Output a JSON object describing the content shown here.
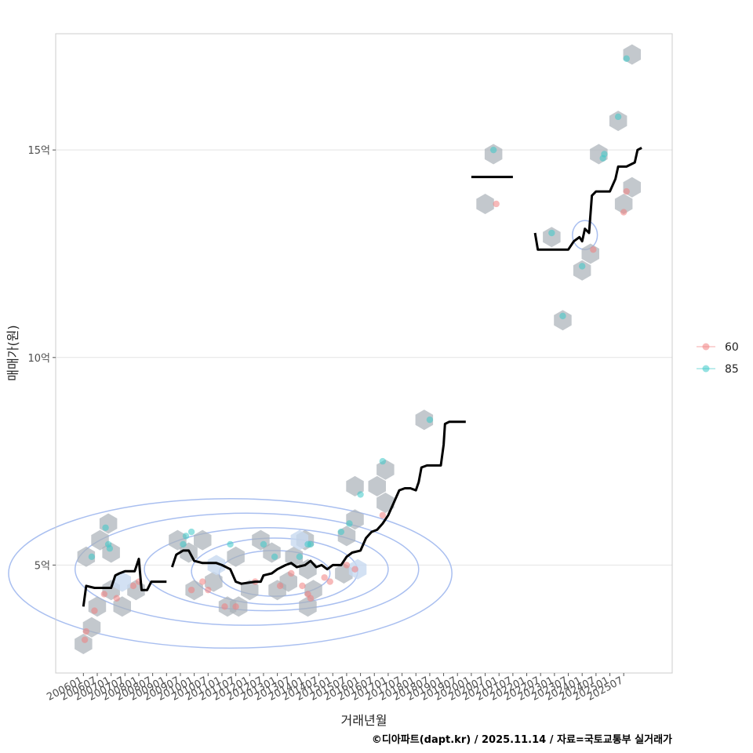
{
  "chart_data": {
    "type": "scatter",
    "xlabel": "거래년월",
    "ylabel": "매매가(원)",
    "caption": "©디아파트(dapt.kr) / 2025.11.14 / 자료=국토교통부 실거래가",
    "xlim": [
      2005.0,
      2027.25
    ],
    "ylim": [
      2.4,
      17.8
    ],
    "x_ticks": [
      "200601",
      "200607",
      "200701",
      "200707",
      "200801",
      "200807",
      "200901",
      "200907",
      "201001",
      "201007",
      "201101",
      "201107",
      "201201",
      "201207",
      "201301",
      "201307",
      "201401",
      "201407",
      "201501",
      "201507",
      "201601",
      "201607",
      "201701",
      "201707",
      "201801",
      "201807",
      "201901",
      "201907",
      "202001",
      "202007",
      "202101",
      "202107",
      "202201",
      "202207",
      "202301",
      "202307",
      "202401",
      "202407",
      "202501",
      "202507"
    ],
    "y_ticks": [
      {
        "value": 5,
        "label": "5억"
      },
      {
        "value": 10,
        "label": "10억"
      },
      {
        "value": 15,
        "label": "15억"
      }
    ],
    "colors": {
      "60": "#f08080",
      "85": "#3cc8c8",
      "hex": "#aab0b8",
      "hex_light": "#c8daf0",
      "contour": "#a9bff0",
      "line": "#000000",
      "grid": "#e3e3e3",
      "panel_border": "#cccccc"
    },
    "legend": [
      {
        "name": "60",
        "color": "#f08080"
      },
      {
        "name": "85",
        "color": "#3cc8c8"
      }
    ],
    "series": [
      {
        "name": "60",
        "points": [
          [
            2006.05,
            3.2
          ],
          [
            2006.1,
            3.4
          ],
          [
            2006.4,
            3.9
          ],
          [
            2006.75,
            4.3
          ],
          [
            2007.2,
            4.2
          ],
          [
            2007.8,
            4.5
          ],
          [
            2008.0,
            4.6
          ],
          [
            2009.9,
            4.4
          ],
          [
            2010.3,
            4.6
          ],
          [
            2010.5,
            4.4
          ],
          [
            2011.1,
            4.0
          ],
          [
            2011.5,
            4.0
          ],
          [
            2012.2,
            4.6
          ],
          [
            2013.1,
            4.5
          ],
          [
            2013.5,
            4.8
          ],
          [
            2013.9,
            4.5
          ],
          [
            2014.1,
            4.3
          ],
          [
            2014.2,
            4.2
          ],
          [
            2014.7,
            4.7
          ],
          [
            2014.9,
            4.6
          ],
          [
            2015.5,
            5.0
          ],
          [
            2015.8,
            4.9
          ],
          [
            2016.8,
            6.2
          ],
          [
            2020.9,
            13.7
          ],
          [
            2024.4,
            12.6
          ],
          [
            2025.5,
            13.5
          ],
          [
            2025.6,
            14.0
          ]
        ]
      },
      {
        "name": "85",
        "points": [
          [
            2006.3,
            5.2
          ],
          [
            2006.8,
            5.9
          ],
          [
            2006.9,
            5.5
          ],
          [
            2006.95,
            5.4
          ],
          [
            2009.6,
            5.5
          ],
          [
            2009.7,
            5.7
          ],
          [
            2009.9,
            5.8
          ],
          [
            2011.3,
            5.5
          ],
          [
            2012.5,
            5.5
          ],
          [
            2012.9,
            5.2
          ],
          [
            2013.8,
            5.2
          ],
          [
            2014.1,
            5.5
          ],
          [
            2014.2,
            5.5
          ],
          [
            2015.3,
            5.8
          ],
          [
            2015.6,
            6.0
          ],
          [
            2016.0,
            6.7
          ],
          [
            2016.8,
            7.5
          ],
          [
            2018.5,
            8.5
          ],
          [
            2020.8,
            15.0
          ],
          [
            2022.9,
            13.0
          ],
          [
            2023.3,
            11.0
          ],
          [
            2024.0,
            12.2
          ],
          [
            2024.75,
            14.8
          ],
          [
            2024.8,
            14.9
          ],
          [
            2025.3,
            15.8
          ],
          [
            2025.6,
            17.2
          ]
        ]
      }
    ],
    "hexbins": [
      [
        2006.0,
        3.1
      ],
      [
        2006.3,
        3.5
      ],
      [
        2006.5,
        4.0
      ],
      [
        2006.1,
        5.2
      ],
      [
        2006.6,
        5.6
      ],
      [
        2006.9,
        6.0
      ],
      [
        2007.0,
        5.3
      ],
      [
        2007.0,
        4.4
      ],
      [
        2007.4,
        4.0
      ],
      [
        2007.9,
        4.4
      ],
      [
        2009.4,
        5.6
      ],
      [
        2009.8,
        5.3
      ],
      [
        2010.0,
        4.4
      ],
      [
        2010.3,
        5.6
      ],
      [
        2010.7,
        4.6
      ],
      [
        2011.2,
        4.0
      ],
      [
        2011.5,
        5.2
      ],
      [
        2011.6,
        4.0
      ],
      [
        2012.0,
        4.4
      ],
      [
        2012.4,
        5.6
      ],
      [
        2012.8,
        5.3
      ],
      [
        2013.0,
        4.4
      ],
      [
        2013.4,
        4.6
      ],
      [
        2013.6,
        5.2
      ],
      [
        2014.0,
        5.6
      ],
      [
        2014.1,
        4.9
      ],
      [
        2014.3,
        4.4
      ],
      [
        2014.1,
        4.0
      ],
      [
        2015.4,
        4.8
      ],
      [
        2015.5,
        5.7
      ],
      [
        2015.8,
        6.1
      ],
      [
        2015.8,
        6.9
      ],
      [
        2016.6,
        6.9
      ],
      [
        2016.9,
        7.3
      ],
      [
        2016.9,
        6.5
      ],
      [
        2018.3,
        8.5
      ],
      [
        2020.5,
        13.7
      ],
      [
        2020.8,
        14.9
      ],
      [
        2022.9,
        12.9
      ],
      [
        2023.3,
        10.9
      ],
      [
        2024.0,
        12.1
      ],
      [
        2024.3,
        12.5
      ],
      [
        2024.6,
        14.9
      ],
      [
        2025.3,
        15.7
      ],
      [
        2025.5,
        13.7
      ],
      [
        2025.8,
        14.1
      ],
      [
        2025.8,
        17.3
      ]
    ],
    "hexbins_light": [
      [
        2007.4,
        4.6
      ],
      [
        2010.8,
        5.0
      ],
      [
        2013.8,
        5.6
      ],
      [
        2015.9,
        4.9
      ]
    ],
    "median_lines": [
      [
        [
          2006.0,
          4.0
        ],
        [
          2006.1,
          4.5
        ],
        [
          2006.4,
          4.45
        ],
        [
          2007.0,
          4.45
        ],
        [
          2007.15,
          4.75
        ],
        [
          2007.3,
          4.8
        ],
        [
          2007.5,
          4.85
        ],
        [
          2007.85,
          4.85
        ],
        [
          2008.0,
          5.15
        ],
        [
          2008.1,
          4.4
        ],
        [
          2008.3,
          4.4
        ],
        [
          2008.45,
          4.6
        ],
        [
          2009.0,
          4.6
        ]
      ],
      [
        [
          2009.2,
          4.95
        ],
        [
          2009.35,
          5.25
        ],
        [
          2009.6,
          5.35
        ],
        [
          2009.8,
          5.35
        ],
        [
          2010.0,
          5.1
        ],
        [
          2010.3,
          5.05
        ],
        [
          2010.8,
          5.05
        ],
        [
          2011.0,
          5.0
        ],
        [
          2011.3,
          4.9
        ],
        [
          2011.5,
          4.6
        ],
        [
          2011.7,
          4.55
        ],
        [
          2012.2,
          4.6
        ],
        [
          2012.4,
          4.6
        ],
        [
          2012.5,
          4.75
        ],
        [
          2012.8,
          4.8
        ],
        [
          2013.0,
          4.9
        ],
        [
          2013.3,
          5.0
        ],
        [
          2013.5,
          5.05
        ],
        [
          2013.7,
          4.95
        ],
        [
          2014.0,
          5.0
        ],
        [
          2014.2,
          5.1
        ],
        [
          2014.4,
          4.95
        ],
        [
          2014.6,
          5.0
        ],
        [
          2014.8,
          4.9
        ],
        [
          2015.0,
          5.0
        ],
        [
          2015.3,
          5.0
        ],
        [
          2015.5,
          5.2
        ],
        [
          2015.7,
          5.3
        ],
        [
          2016.0,
          5.35
        ],
        [
          2016.2,
          5.65
        ],
        [
          2016.4,
          5.8
        ],
        [
          2016.6,
          5.85
        ],
        [
          2016.8,
          6.0
        ],
        [
          2017.0,
          6.2
        ],
        [
          2017.2,
          6.5
        ],
        [
          2017.4,
          6.8
        ],
        [
          2017.6,
          6.85
        ],
        [
          2017.8,
          6.85
        ],
        [
          2018.0,
          6.8
        ],
        [
          2018.1,
          7.0
        ],
        [
          2018.2,
          7.35
        ],
        [
          2018.4,
          7.4
        ],
        [
          2018.9,
          7.4
        ],
        [
          2019.0,
          7.9
        ],
        [
          2019.05,
          8.4
        ],
        [
          2019.2,
          8.45
        ],
        [
          2019.8,
          8.45
        ]
      ],
      [
        [
          2020.0,
          14.35
        ],
        [
          2021.5,
          14.35
        ]
      ],
      [
        [
          2022.3,
          13.0
        ],
        [
          2022.4,
          12.6
        ],
        [
          2023.0,
          12.6
        ],
        [
          2023.5,
          12.6
        ],
        [
          2023.7,
          12.8
        ],
        [
          2023.9,
          12.9
        ],
        [
          2024.0,
          12.8
        ],
        [
          2024.1,
          13.1
        ],
        [
          2024.25,
          13.0
        ],
        [
          2024.35,
          13.9
        ],
        [
          2024.5,
          14.0
        ],
        [
          2025.0,
          14.0
        ],
        [
          2025.2,
          14.3
        ],
        [
          2025.3,
          14.6
        ],
        [
          2025.6,
          14.6
        ],
        [
          2025.9,
          14.7
        ],
        [
          2026.0,
          15.0
        ],
        [
          2026.15,
          15.05
        ]
      ]
    ],
    "contours": [
      {
        "cx": 2012.9,
        "cy": 4.8,
        "rx": 2.0,
        "ry": 0.55
      },
      {
        "cx": 2012.9,
        "cy": 4.85,
        "rx": 3.0,
        "ry": 0.8
      },
      {
        "cx": 2012.6,
        "cy": 4.9,
        "rx": 4.4,
        "ry": 1.0
      },
      {
        "cx": 2011.9,
        "cy": 4.9,
        "rx": 6.2,
        "ry": 1.35
      },
      {
        "cx": 2011.3,
        "cy": 4.8,
        "rx": 8.0,
        "ry": 1.8
      },
      {
        "cx": 2024.1,
        "cy": 12.95,
        "rx": 0.45,
        "ry": 0.35
      }
    ]
  }
}
